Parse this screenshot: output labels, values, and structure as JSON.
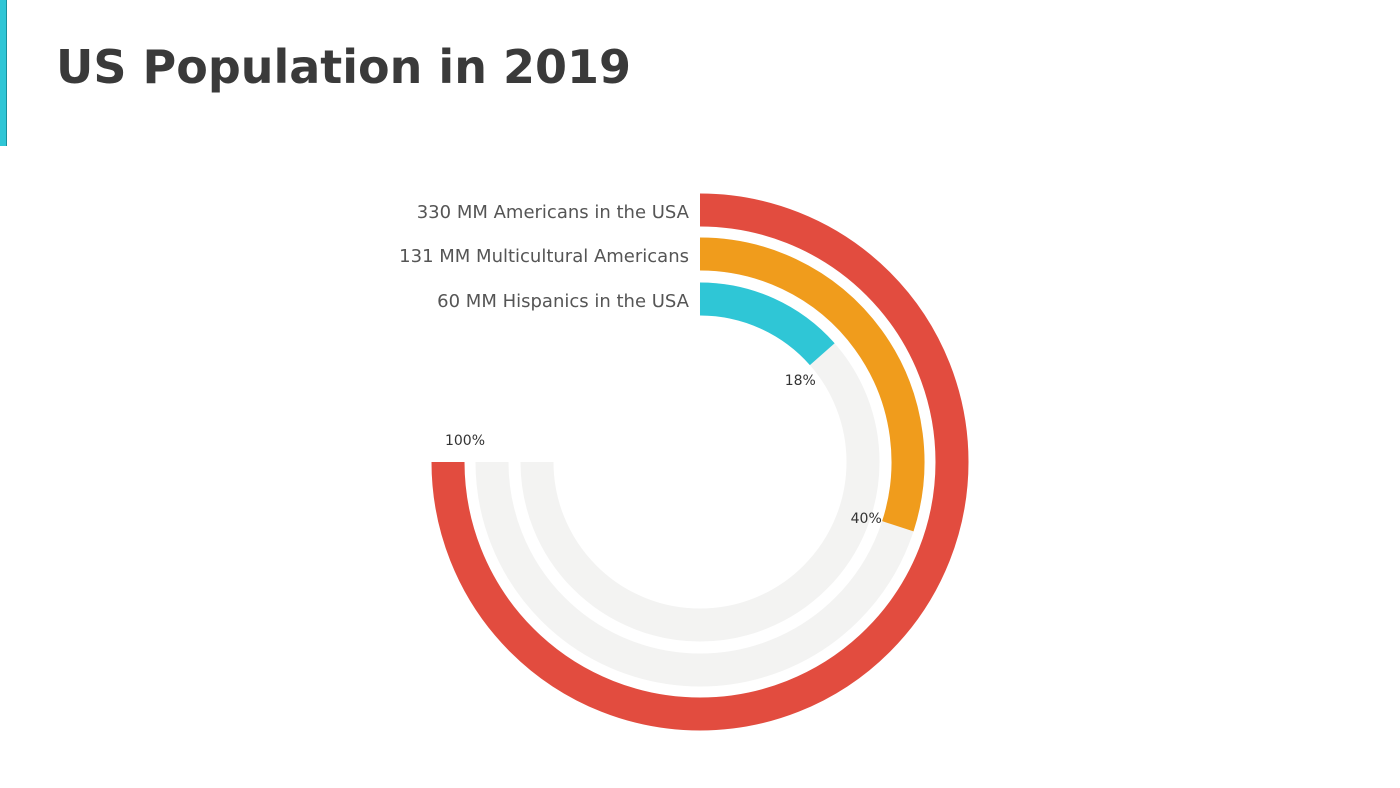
{
  "title": "US Population in 2019",
  "colors": {
    "accent_bar": "#2fc6d6",
    "track": "#f3f3f2",
    "americans": "#e24c3f",
    "multicultural": "#f09c1c",
    "hispanics": "#2fc6d6",
    "label_text": "#555555",
    "pct_text": "#333333"
  },
  "chart_data": {
    "type": "radial-bar",
    "title": "US Population in 2019",
    "value_unit": "%",
    "max": 100,
    "series": [
      {
        "label": "330 MM Americans in the USA",
        "value": 100,
        "value_label": "100%",
        "color": "#e24c3f"
      },
      {
        "label": "131 MM Multicultural Americans",
        "value": 40,
        "value_label": "40%",
        "color": "#f09c1c"
      },
      {
        "label": "60 MM Hispanics in the USA",
        "value": 18,
        "value_label": "18%",
        "color": "#2fc6d6"
      }
    ]
  }
}
